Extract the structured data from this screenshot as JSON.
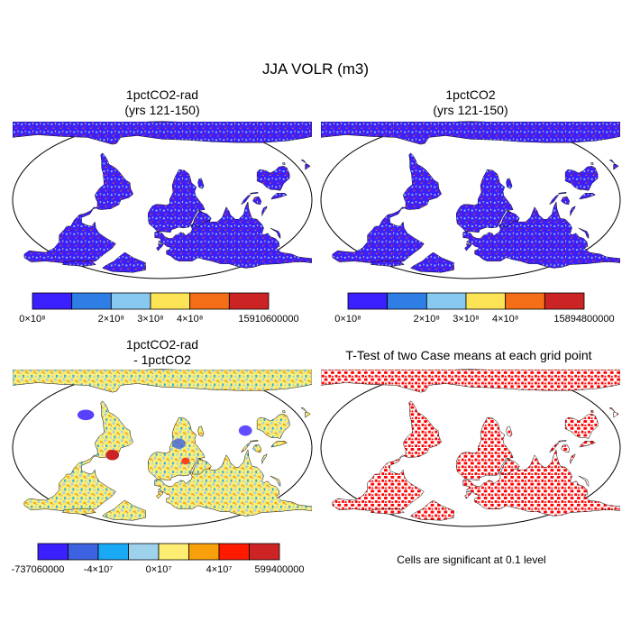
{
  "figure": {
    "title": "JJA VOLR (m3)",
    "footnote": "Cells are significant at 0.1 level"
  },
  "panels": [
    {
      "id": "rad",
      "title_line1": "1pctCO2-rad",
      "title_line2": "(yrs 121-150)",
      "map_type": "field",
      "colorbar": {
        "colors": [
          "#3a1fff",
          "#2f7ee6",
          "#87c9f0",
          "#fde457",
          "#f46d17",
          "#cc2424"
        ],
        "labels": [
          "0×10⁸",
          "2×10⁸",
          "3×10⁸",
          "4×10⁸",
          "15910600000"
        ]
      }
    },
    {
      "id": "ctl",
      "title_line1": "1pctCO2",
      "title_line2": "(yrs 121-150)",
      "map_type": "field",
      "colorbar": {
        "colors": [
          "#3a1fff",
          "#2f7ee6",
          "#87c9f0",
          "#fde457",
          "#f46d17",
          "#cc2424"
        ],
        "labels": [
          "0×10⁸",
          "2×10⁸",
          "3×10⁸",
          "4×10⁸",
          "15894800000"
        ]
      }
    },
    {
      "id": "diff",
      "title_line1": "1pctCO2-rad",
      "title_line2": "- 1pctCO2",
      "map_type": "difference",
      "colorbar": {
        "colors": [
          "#3a1fff",
          "#3d62e0",
          "#19a9f5",
          "#9ed2ec",
          "#fdee73",
          "#f7a00c",
          "#ff1a00",
          "#cc2424"
        ],
        "labels": [
          "-737060000",
          "-4×10⁷",
          "0×10⁷",
          "4×10⁷",
          "599400000"
        ]
      }
    },
    {
      "id": "ttest",
      "title_line1": "T-Test of two Case means at each grid point",
      "title_line2": "",
      "map_type": "significance",
      "sig_color": "#ff0000"
    }
  ]
}
